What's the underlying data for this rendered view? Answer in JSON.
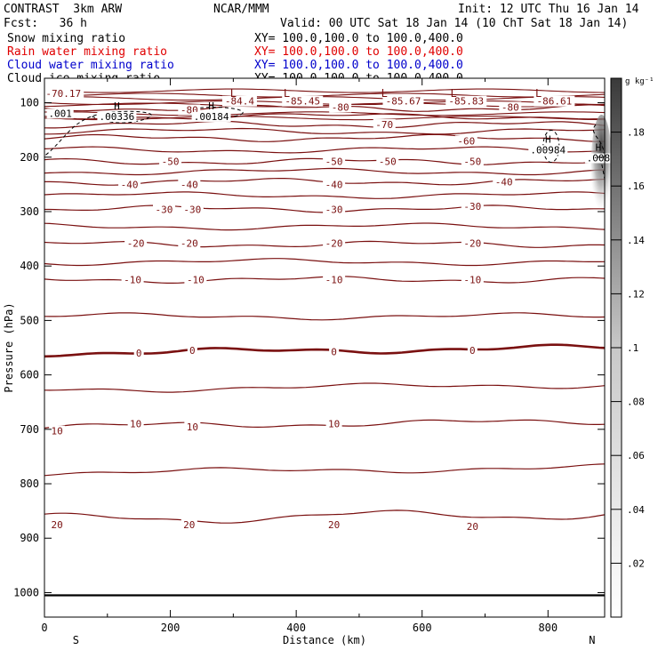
{
  "header": {
    "model": "CONTRAST  3km ARW",
    "org": "NCAR/MMM",
    "init": "Init: 12 UTC Thu 16 Jan 14",
    "fcst": "Fcst:   36 h",
    "valid": "Valid: 00 UTC Sat 18 Jan 14 (10 ChT Sat 18 Jan 14)",
    "fields": [
      {
        "label": "Snow mixing ratio",
        "xy": "XY= 100.0,100.0 to 100.0,400.0",
        "color": "#000000"
      },
      {
        "label": "Rain water mixing ratio",
        "xy": "XY= 100.0,100.0 to 100.0,400.0",
        "color": "#e00000"
      },
      {
        "label": "Cloud water mixing ratio",
        "xy": "XY= 100.0,100.0 to 100.0,400.0",
        "color": "#0000cc"
      },
      {
        "label": "Cloud ice mixing ratio",
        "xy": "XY= 100.0,100.0 to 100.0,400.0",
        "color": "#000000"
      }
    ]
  },
  "colors": {
    "contour": "#7a1010",
    "axis": "#000000"
  },
  "chart_data": {
    "type": "cross-section contour",
    "xlabel": "Distance (km)",
    "ylabel": "Pressure (hPa)",
    "xlim": [
      0,
      890
    ],
    "ylim": [
      1045,
      55
    ],
    "x_ticks": [
      0,
      200,
      400,
      600,
      800
    ],
    "y_ticks": [
      100,
      200,
      300,
      400,
      500,
      600,
      700,
      800,
      900,
      1000
    ],
    "end_labels": {
      "left": "S",
      "right": "N"
    },
    "surface_pressure": 1005,
    "temperature_contours": [
      {
        "value": -80,
        "pressure": 110
      },
      {
        "value": -70,
        "pressure": 140
      },
      {
        "value": -60,
        "pressure": 165
      },
      {
        "value": -50,
        "pressure": 208
      },
      {
        "value": -40,
        "pressure": 245
      },
      {
        "value": -30,
        "pressure": 295
      },
      {
        "value": -20,
        "pressure": 360
      },
      {
        "value": -10,
        "pressure": 425
      },
      {
        "value": 0,
        "pressure": 560
      },
      {
        "value": 10,
        "pressure": 695
      },
      {
        "value": 20,
        "pressure": 865
      }
    ],
    "contour_labels": [
      {
        "text": "-70.17",
        "x": 30,
        "p": 83
      },
      {
        "text": "-84.4",
        "x": 310,
        "p": 97
      },
      {
        "text": "-85.45",
        "x": 410,
        "p": 97
      },
      {
        "text": "-85.67",
        "x": 570,
        "p": 97
      },
      {
        "text": "-85.83",
        "x": 670,
        "p": 97
      },
      {
        "text": "-86.61",
        "x": 810,
        "p": 97
      },
      {
        "text": "-80",
        "x": 230,
        "p": 113
      },
      {
        "text": "-80",
        "x": 470,
        "p": 108
      },
      {
        "text": "-80",
        "x": 740,
        "p": 108
      },
      {
        "text": "-70",
        "x": 540,
        "p": 140
      },
      {
        "text": "-60",
        "x": 670,
        "p": 170
      },
      {
        "text": "-50",
        "x": 200,
        "p": 208
      },
      {
        "text": "-50",
        "x": 460,
        "p": 208
      },
      {
        "text": "-50",
        "x": 545,
        "p": 208
      },
      {
        "text": "-50",
        "x": 680,
        "p": 208
      },
      {
        "text": "-40",
        "x": 135,
        "p": 250
      },
      {
        "text": "-40",
        "x": 230,
        "p": 250
      },
      {
        "text": "-40",
        "x": 460,
        "p": 250
      },
      {
        "text": "-40",
        "x": 730,
        "p": 245
      },
      {
        "text": "-30",
        "x": 190,
        "p": 296
      },
      {
        "text": "-30",
        "x": 235,
        "p": 296
      },
      {
        "text": "-30",
        "x": 460,
        "p": 296
      },
      {
        "text": "-30",
        "x": 680,
        "p": 290
      },
      {
        "text": "-20",
        "x": 145,
        "p": 358
      },
      {
        "text": "-20",
        "x": 230,
        "p": 358
      },
      {
        "text": "-20",
        "x": 460,
        "p": 358
      },
      {
        "text": "-20",
        "x": 680,
        "p": 358
      },
      {
        "text": "-10",
        "x": 140,
        "p": 425
      },
      {
        "text": "-10",
        "x": 240,
        "p": 425
      },
      {
        "text": "-10",
        "x": 460,
        "p": 425
      },
      {
        "text": "-10",
        "x": 680,
        "p": 425
      },
      {
        "text": "0",
        "x": 150,
        "p": 560
      },
      {
        "text": "0",
        "x": 235,
        "p": 555
      },
      {
        "text": "0",
        "x": 460,
        "p": 557
      },
      {
        "text": "0",
        "x": 680,
        "p": 555
      },
      {
        "text": "10",
        "x": 145,
        "p": 690
      },
      {
        "text": "10",
        "x": 235,
        "p": 695
      },
      {
        "text": "10",
        "x": 460,
        "p": 690
      },
      {
        "text": "10",
        "x": 20,
        "p": 703
      },
      {
        "text": "20",
        "x": 20,
        "p": 875
      },
      {
        "text": "20",
        "x": 230,
        "p": 875
      },
      {
        "text": "20",
        "x": 460,
        "p": 875
      },
      {
        "text": "20",
        "x": 680,
        "p": 878
      }
    ],
    "low_markers": [
      {
        "x": 300,
        "p": 83
      },
      {
        "x": 385,
        "p": 83
      },
      {
        "x": 540,
        "p": 83
      },
      {
        "x": 650,
        "p": 83
      },
      {
        "x": 785,
        "p": 83
      }
    ],
    "mixing_ratio_labels": [
      {
        "marker": "H",
        "text": ".00336",
        "x": 115,
        "p": 117
      },
      {
        "marker": "H",
        "text": ".00184",
        "x": 265,
        "p": 117
      },
      {
        "marker": "H",
        "text": ".00984",
        "x": 800,
        "p": 178
      },
      {
        "marker": "H",
        "text": ".008",
        "x": 880,
        "p": 193
      },
      {
        "marker": "",
        "text": ".001",
        "x": 25,
        "p": 111
      }
    ],
    "colorbar": {
      "unit": "g kg⁻¹",
      "ticks": [
        ".02",
        ".04",
        ".06",
        ".08",
        ".1",
        ".12",
        ".14",
        ".16",
        ".18"
      ],
      "tick_values": [
        0.02,
        0.04,
        0.06,
        0.08,
        0.1,
        0.12,
        0.14,
        0.16,
        0.18
      ],
      "min": 0,
      "max": 0.2
    }
  }
}
